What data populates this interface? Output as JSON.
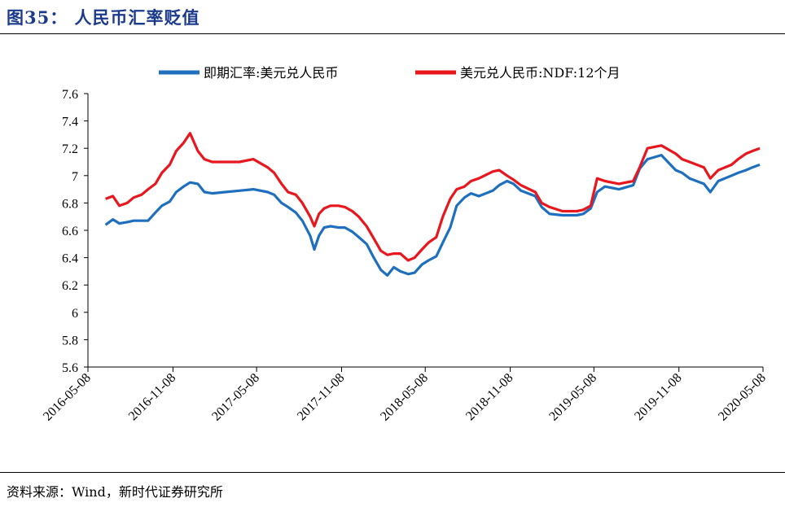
{
  "figure": {
    "title": "图35： 人民币汇率贬值",
    "source": "资料来源：Wind，新时代证券研究所"
  },
  "colors": {
    "spot": "#1f6fbf",
    "ndf": "#e8161d"
  },
  "chart_data": {
    "type": "line",
    "title": "",
    "xlabel": "",
    "ylabel": "",
    "ylim": [
      5.6,
      7.6
    ],
    "y_ticks": [
      "7.6",
      "7.4",
      "7.2",
      "7",
      "6.8",
      "6.6",
      "6.4",
      "6.2",
      "6",
      "5.8",
      "5.6"
    ],
    "x_ticks": [
      "2016-05-08",
      "2016-11-08",
      "2017-05-08",
      "2017-11-08",
      "2018-05-08",
      "2018-11-08",
      "2019-05-08",
      "2019-11-08",
      "2020-05-08"
    ],
    "xlim": [
      "2016-05-08",
      "2020-05-08"
    ],
    "grid": false,
    "legend": "top",
    "x": [
      "2016-06-15",
      "2016-07-01",
      "2016-07-15",
      "2016-08-01",
      "2016-08-15",
      "2016-09-01",
      "2016-09-15",
      "2016-10-01",
      "2016-10-15",
      "2016-11-01",
      "2016-11-15",
      "2016-12-01",
      "2016-12-15",
      "2017-01-01",
      "2017-01-15",
      "2017-02-01",
      "2017-03-01",
      "2017-04-01",
      "2017-05-01",
      "2017-06-01",
      "2017-06-15",
      "2017-07-01",
      "2017-07-15",
      "2017-08-01",
      "2017-08-15",
      "2017-09-01",
      "2017-09-10",
      "2017-09-20",
      "2017-10-01",
      "2017-10-15",
      "2017-11-01",
      "2017-11-15",
      "2017-12-01",
      "2017-12-15",
      "2018-01-01",
      "2018-01-15",
      "2018-02-01",
      "2018-02-15",
      "2018-03-01",
      "2018-03-15",
      "2018-04-01",
      "2018-04-15",
      "2018-05-01",
      "2018-05-15",
      "2018-06-01",
      "2018-06-15",
      "2018-07-01",
      "2018-07-15",
      "2018-08-01",
      "2018-08-15",
      "2018-09-01",
      "2018-10-01",
      "2018-10-15",
      "2018-11-01",
      "2018-11-15",
      "2018-12-01",
      "2019-01-01",
      "2019-01-15",
      "2019-02-01",
      "2019-03-01",
      "2019-04-01",
      "2019-04-15",
      "2019-05-01",
      "2019-05-15",
      "2019-06-01",
      "2019-07-01",
      "2019-08-01",
      "2019-08-15",
      "2019-09-01",
      "2019-10-01",
      "2019-11-01",
      "2019-11-15",
      "2019-12-01",
      "2020-01-01",
      "2020-01-15",
      "2020-02-01",
      "2020-03-01",
      "2020-03-15",
      "2020-04-01",
      "2020-04-15",
      "2020-05-01"
    ],
    "series": [
      {
        "name": "即期汇率:美元兑人民币",
        "values": [
          6.64,
          6.68,
          6.65,
          6.66,
          6.67,
          6.67,
          6.67,
          6.73,
          6.78,
          6.81,
          6.88,
          6.92,
          6.95,
          6.94,
          6.88,
          6.87,
          6.88,
          6.89,
          6.9,
          6.88,
          6.86,
          6.8,
          6.77,
          6.73,
          6.67,
          6.56,
          6.46,
          6.56,
          6.62,
          6.63,
          6.62,
          6.62,
          6.59,
          6.55,
          6.5,
          6.41,
          6.31,
          6.27,
          6.33,
          6.3,
          6.28,
          6.29,
          6.35,
          6.38,
          6.41,
          6.51,
          6.62,
          6.78,
          6.84,
          6.87,
          6.85,
          6.89,
          6.93,
          6.96,
          6.94,
          6.89,
          6.85,
          6.77,
          6.72,
          6.71,
          6.71,
          6.72,
          6.76,
          6.88,
          6.92,
          6.9,
          6.93,
          7.05,
          7.12,
          7.15,
          7.04,
          7.02,
          6.98,
          6.94,
          6.88,
          6.96,
          7.0,
          7.02,
          7.04,
          7.06,
          7.08
        ]
      },
      {
        "name": "美元兑人民币:NDF:12个月",
        "values": [
          6.83,
          6.85,
          6.78,
          6.8,
          6.84,
          6.86,
          6.9,
          6.94,
          7.02,
          7.08,
          7.18,
          7.24,
          7.31,
          7.18,
          7.12,
          7.1,
          7.1,
          7.1,
          7.12,
          7.06,
          7.02,
          6.94,
          6.88,
          6.86,
          6.8,
          6.7,
          6.63,
          6.72,
          6.76,
          6.78,
          6.78,
          6.77,
          6.74,
          6.7,
          6.63,
          6.55,
          6.45,
          6.42,
          6.43,
          6.43,
          6.38,
          6.4,
          6.46,
          6.51,
          6.55,
          6.7,
          6.83,
          6.9,
          6.92,
          6.96,
          6.98,
          7.03,
          7.04,
          7.0,
          6.97,
          6.93,
          6.88,
          6.8,
          6.77,
          6.74,
          6.74,
          6.75,
          6.78,
          6.98,
          6.96,
          6.94,
          6.96,
          7.06,
          7.2,
          7.22,
          7.16,
          7.12,
          7.1,
          7.06,
          6.98,
          7.04,
          7.08,
          7.12,
          7.16,
          7.18,
          7.2
        ]
      }
    ]
  }
}
